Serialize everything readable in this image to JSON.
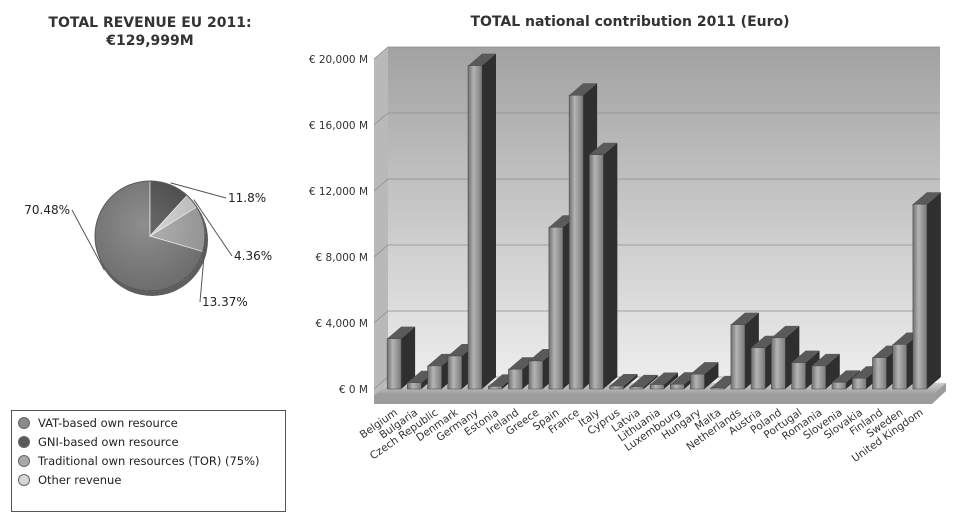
{
  "pie": {
    "title_line1": "TOTAL REVENUE EU 2011:",
    "title_line2": "€129,999M"
  },
  "legend": [
    {
      "label": "VAT-based own resource",
      "color": "#8a8a8a"
    },
    {
      "label": "GNI-based own resource",
      "color": "#5a5a5a"
    },
    {
      "label": "Traditional own resources (TOR) (75%)",
      "color": "#a9a9a9"
    },
    {
      "label": "Other revenue",
      "color": "#d6d6d6"
    }
  ],
  "chart_data": [
    {
      "type": "pie",
      "title": "TOTAL REVENUE EU 2011: €129,999M",
      "slices": [
        {
          "name": "GNI-based own resource",
          "value": 70.48,
          "label": "70.48%",
          "color": "#7a7a7a"
        },
        {
          "name": "VAT-based own resource",
          "value": 11.8,
          "label": "11.8%",
          "color": "#4e4e4e"
        },
        {
          "name": "Other revenue",
          "value": 4.36,
          "label": "4.36%",
          "color": "#d0d0d0"
        },
        {
          "name": "Traditional own resources (TOR) (75%)",
          "value": 13.37,
          "label": "13.37%",
          "color": "#a5a5a5"
        }
      ]
    },
    {
      "type": "bar",
      "title": "TOTAL national contribution 2011 (Euro)",
      "xlabel": "",
      "ylabel": "",
      "ylim": [
        0,
        20000
      ],
      "yticks": [
        0,
        4000,
        8000,
        12000,
        16000,
        20000
      ],
      "ytick_labels": [
        "€ 0 M",
        "€ 4,000 M",
        "€ 8,000 M",
        "€ 12,000 M",
        "€ 16,000 M",
        "€ 20,000 M"
      ],
      "grid": true,
      "categories": [
        "Belgium",
        "Bulgaria",
        "Czech Republic",
        "Denmark",
        "Germany",
        "Estonia",
        "Ireland",
        "Greece",
        "Spain",
        "France",
        "Italy",
        "Cyprus",
        "Latvia",
        "Lithuania",
        "Luxembourg",
        "Hungary",
        "Malta",
        "Netherlands",
        "Austria",
        "Poland",
        "Portugal",
        "Romania",
        "Slovenia",
        "Slovakia",
        "Finland",
        "Sweden",
        "United Kingdom"
      ],
      "values": [
        3050,
        380,
        1400,
        2000,
        19600,
        160,
        1200,
        1700,
        9800,
        17800,
        14200,
        180,
        130,
        270,
        290,
        900,
        70,
        3900,
        2500,
        3100,
        1600,
        1400,
        400,
        650,
        1900,
        2700,
        11200
      ]
    }
  ]
}
